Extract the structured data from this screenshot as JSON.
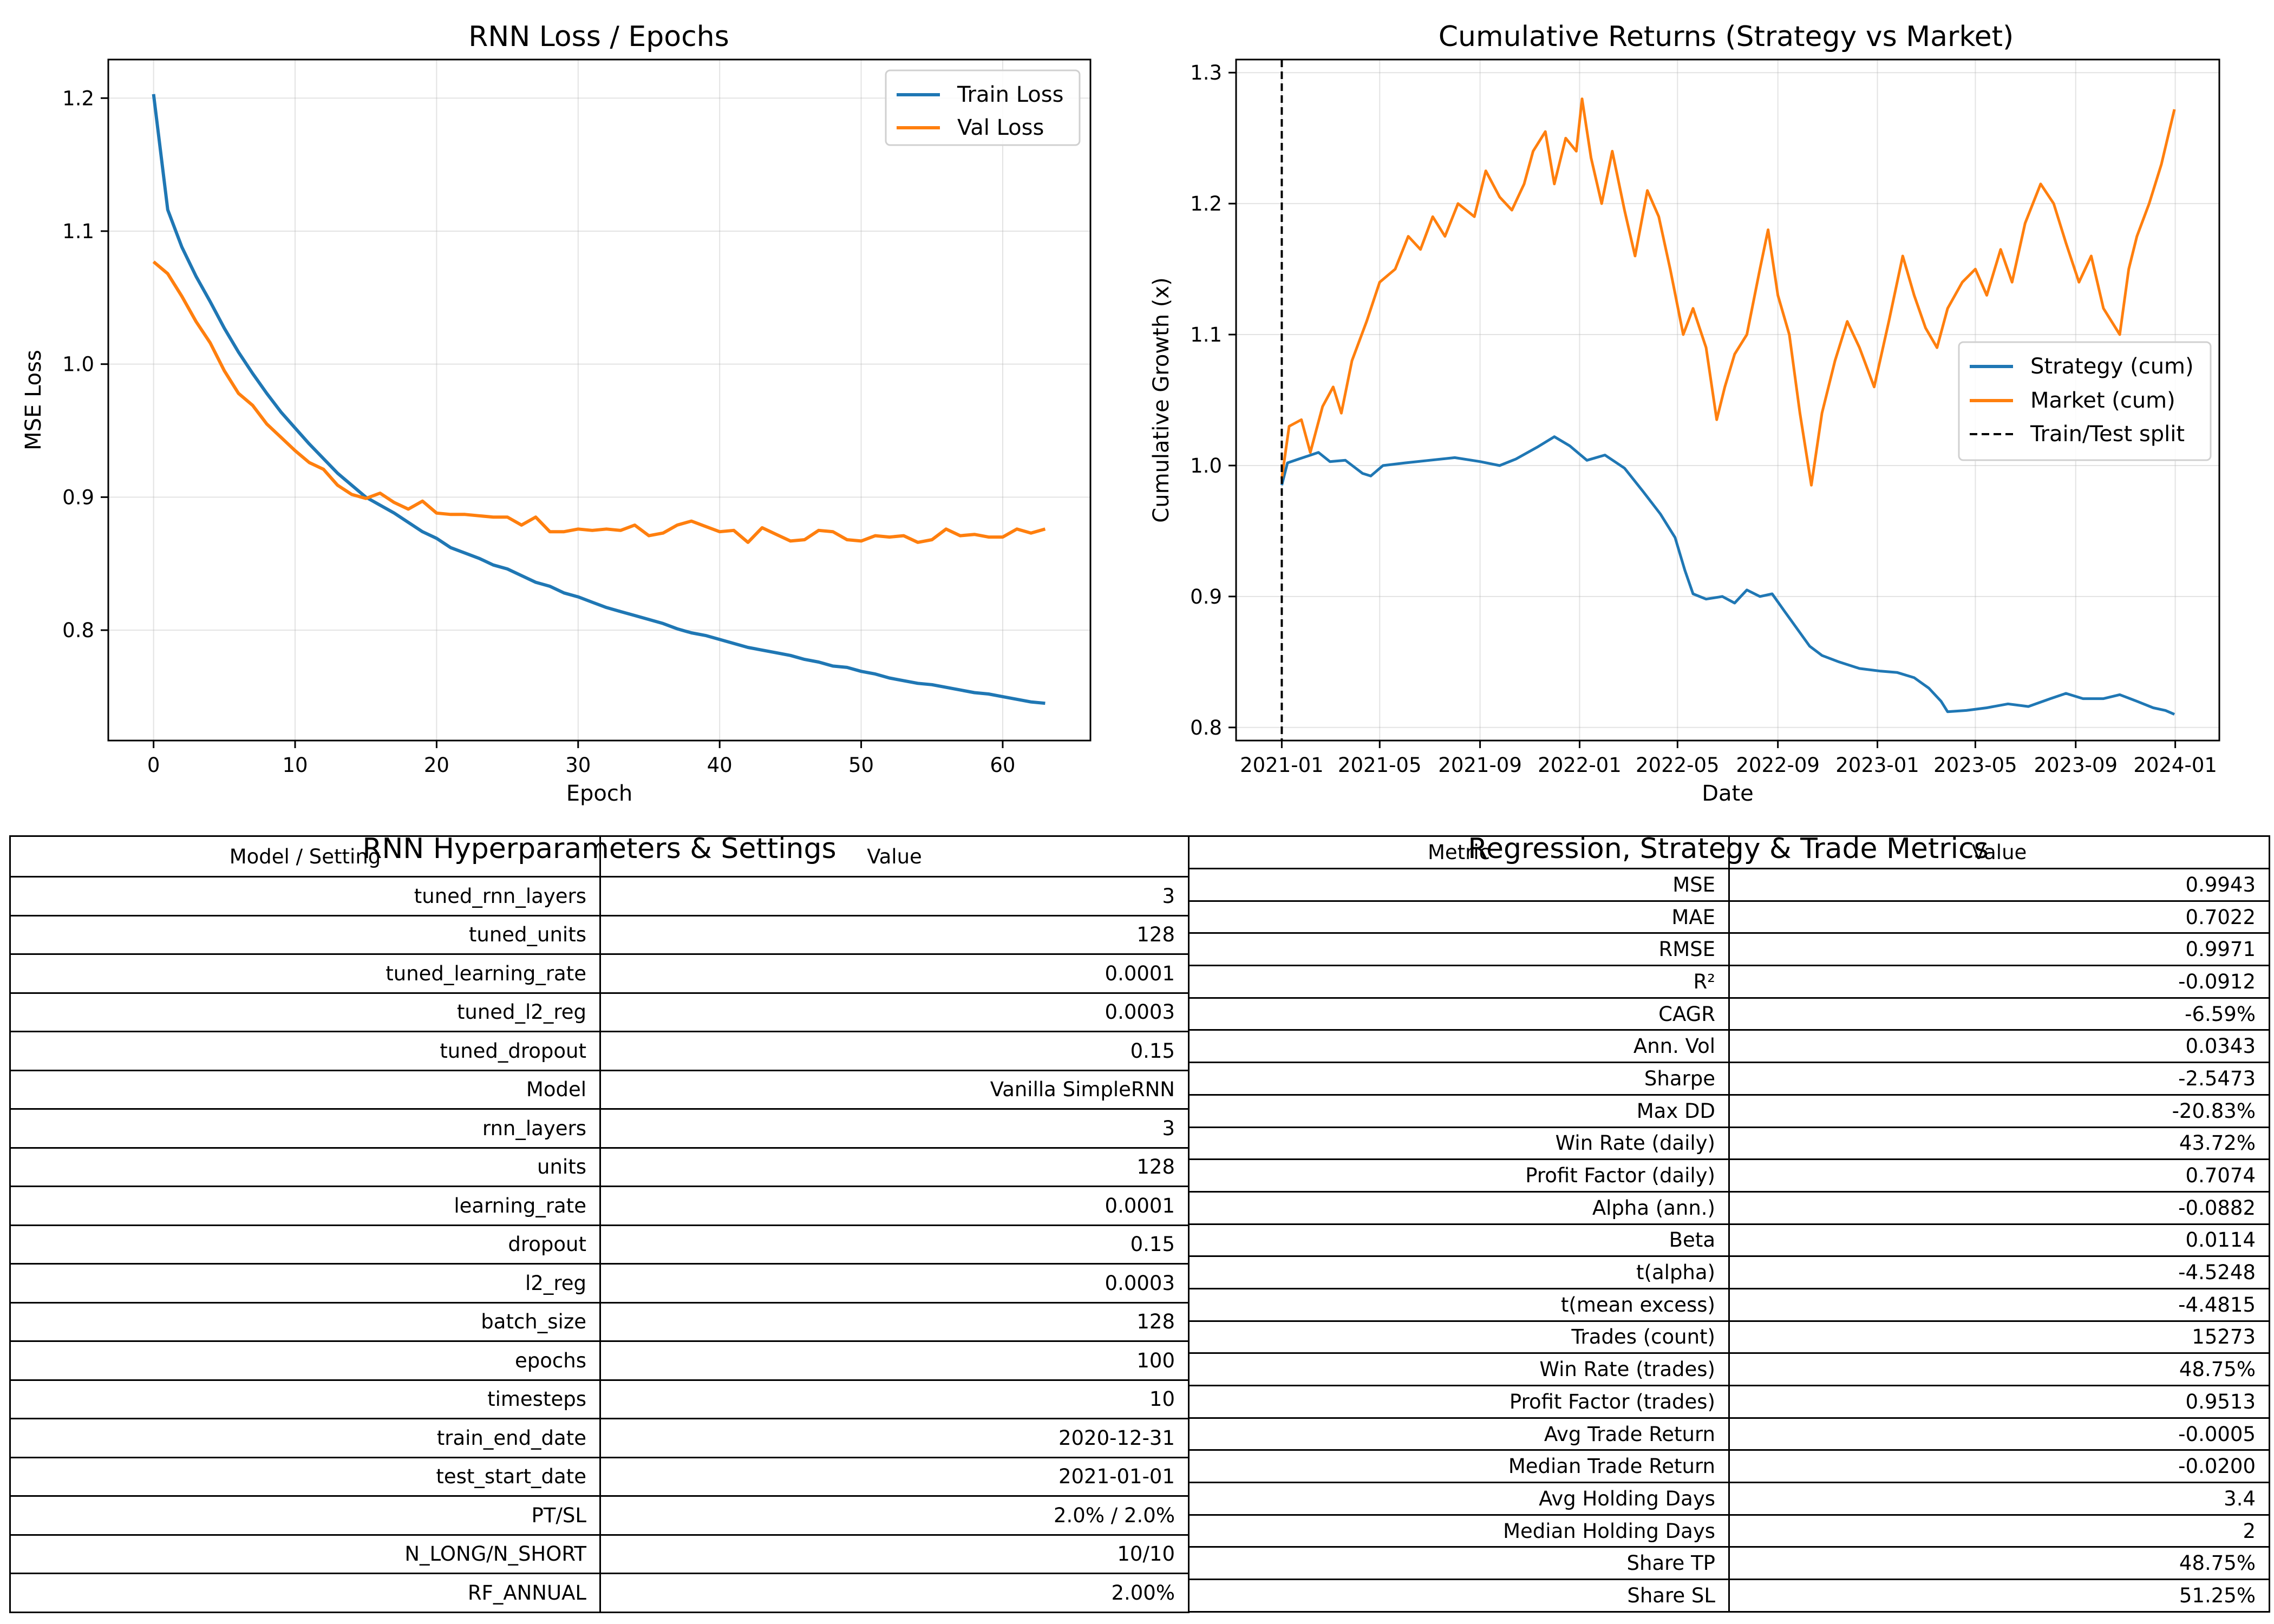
{
  "charts": {
    "loss": {
      "title": "RNN Loss / Epochs",
      "xlabel": "Epoch",
      "ylabel": "MSE Loss"
    },
    "returns": {
      "title": "Cumulative Returns (Strategy vs Market)",
      "xlabel": "Date",
      "ylabel": "Cumulative Growth (x)"
    }
  },
  "tables": {
    "hyper": {
      "title": "RNN Hyperparameters & Settings",
      "header": [
        "Model / Setting",
        "Value"
      ],
      "rows": [
        [
          "tuned_rnn_layers",
          "3"
        ],
        [
          "tuned_units",
          "128"
        ],
        [
          "tuned_learning_rate",
          "0.0001"
        ],
        [
          "tuned_l2_reg",
          "0.0003"
        ],
        [
          "tuned_dropout",
          "0.15"
        ],
        [
          "Model",
          "Vanilla SimpleRNN"
        ],
        [
          "rnn_layers",
          "3"
        ],
        [
          "units",
          "128"
        ],
        [
          "learning_rate",
          "0.0001"
        ],
        [
          "dropout",
          "0.15"
        ],
        [
          "l2_reg",
          "0.0003"
        ],
        [
          "batch_size",
          "128"
        ],
        [
          "epochs",
          "100"
        ],
        [
          "timesteps",
          "10"
        ],
        [
          "train_end_date",
          "2020-12-31"
        ],
        [
          "test_start_date",
          "2021-01-01"
        ],
        [
          "PT/SL",
          "2.0% / 2.0%"
        ],
        [
          "N_LONG/N_SHORT",
          "10/10"
        ],
        [
          "RF_ANNUAL",
          "2.00%"
        ]
      ]
    },
    "metrics": {
      "title": "Regression, Strategy & Trade Metrics",
      "header": [
        "Metric",
        "Value"
      ],
      "rows": [
        [
          "MSE",
          "0.9943"
        ],
        [
          "MAE",
          "0.7022"
        ],
        [
          "RMSE",
          "0.9971"
        ],
        [
          "R²",
          "-0.0912"
        ],
        [
          "CAGR",
          "-6.59%"
        ],
        [
          "Ann. Vol",
          "0.0343"
        ],
        [
          "Sharpe",
          "-2.5473"
        ],
        [
          "Max DD",
          "-20.83%"
        ],
        [
          "Win Rate (daily)",
          "43.72%"
        ],
        [
          "Profit Factor (daily)",
          "0.7074"
        ],
        [
          "Alpha (ann.)",
          "-0.0882"
        ],
        [
          "Beta",
          "0.0114"
        ],
        [
          "t(alpha)",
          "-4.5248"
        ],
        [
          "t(mean excess)",
          "-4.4815"
        ],
        [
          "Trades (count)",
          "15273"
        ],
        [
          "Win Rate (trades)",
          "48.75%"
        ],
        [
          "Profit Factor (trades)",
          "0.9513"
        ],
        [
          "Avg Trade Return",
          "-0.0005"
        ],
        [
          "Median Trade Return",
          "-0.0200"
        ],
        [
          "Avg Holding Days",
          "3.4"
        ],
        [
          "Median Holding Days",
          "2"
        ],
        [
          "Share TP",
          "48.75%"
        ],
        [
          "Share SL",
          "51.25%"
        ]
      ]
    }
  },
  "chart_data": [
    {
      "type": "line",
      "title": "RNN Loss / Epochs",
      "xlabel": "Epoch",
      "ylabel": "MSE Loss",
      "xlim": [
        -3.2,
        66.2
      ],
      "ylim": [
        0.717,
        1.229
      ],
      "xticks": [
        0,
        10,
        20,
        30,
        40,
        50,
        60
      ],
      "yticks": [
        0.8,
        0.9,
        1.0,
        1.1,
        1.2
      ],
      "ytick_labels": [
        "0.8",
        "0.9",
        "1.0",
        "1.1",
        "1.2"
      ],
      "grid": true,
      "legend": "top-right",
      "series": [
        {
          "name": "Train Loss",
          "color": "#1f77b4",
          "values": [
            1.203,
            1.116,
            1.088,
            1.066,
            1.047,
            1.027,
            1.009,
            0.993,
            0.978,
            0.964,
            0.952,
            0.94,
            0.929,
            0.918,
            0.909,
            0.9,
            0.894,
            0.888,
            0.881,
            0.874,
            0.869,
            0.862,
            0.858,
            0.854,
            0.849,
            0.846,
            0.841,
            0.836,
            0.833,
            0.828,
            0.825,
            0.821,
            0.817,
            0.814,
            0.811,
            0.808,
            0.805,
            0.801,
            0.798,
            0.796,
            0.793,
            0.79,
            0.787,
            0.785,
            0.783,
            0.781,
            0.778,
            0.776,
            0.773,
            0.772,
            0.769,
            0.767,
            0.764,
            0.762,
            0.76,
            0.759,
            0.757,
            0.755,
            0.753,
            0.752,
            0.75,
            0.748,
            0.746,
            0.745
          ]
        },
        {
          "name": "Val Loss",
          "color": "#ff7f0e",
          "values": [
            1.077,
            1.068,
            1.051,
            1.032,
            1.016,
            0.995,
            0.978,
            0.969,
            0.955,
            0.945,
            0.935,
            0.926,
            0.921,
            0.909,
            0.902,
            0.899,
            0.903,
            0.896,
            0.891,
            0.897,
            0.888,
            0.887,
            0.887,
            0.886,
            0.885,
            0.885,
            0.879,
            0.885,
            0.874,
            0.874,
            0.876,
            0.875,
            0.876,
            0.875,
            0.879,
            0.871,
            0.873,
            0.879,
            0.882,
            0.878,
            0.874,
            0.875,
            0.866,
            0.877,
            0.872,
            0.867,
            0.868,
            0.875,
            0.874,
            0.868,
            0.867,
            0.871,
            0.87,
            0.871,
            0.866,
            0.868,
            0.876,
            0.871,
            0.872,
            0.87,
            0.87,
            0.876,
            0.873,
            0.876
          ]
        }
      ]
    },
    {
      "type": "line",
      "title": "Cumulative Returns (Strategy vs Market)",
      "xlabel": "Date",
      "ylabel": "Cumulative Growth (x)",
      "x_type": "date",
      "xlim": [
        "2020-11-06",
        "2024-02-24"
      ],
      "ylim": [
        0.79,
        1.31
      ],
      "xticks": [
        "2021-01",
        "2021-05",
        "2021-09",
        "2022-01",
        "2022-05",
        "2022-09",
        "2023-01",
        "2023-05",
        "2023-09",
        "2024-01"
      ],
      "yticks": [
        0.8,
        0.9,
        1.0,
        1.1,
        1.2,
        1.3
      ],
      "ytick_labels": [
        "0.8",
        "0.9",
        "1.0",
        "1.1",
        "1.2",
        "1.3"
      ],
      "grid": true,
      "legend": "center-right",
      "split": {
        "name": "Train/Test split",
        "date": "2021-01-01",
        "color": "#000000"
      },
      "series": [
        {
          "name": "Strategy (cum)",
          "color": "#1f77b4",
          "points": [
            [
              "2021-01-01",
              0.985
            ],
            [
              "2021-01-08",
              1.002
            ],
            [
              "2021-01-22",
              1.005
            ],
            [
              "2021-02-15",
              1.01
            ],
            [
              "2021-03-01",
              1.003
            ],
            [
              "2021-03-20",
              1.004
            ],
            [
              "2021-04-10",
              0.994
            ],
            [
              "2021-04-20",
              0.992
            ],
            [
              "2021-05-05",
              1.0
            ],
            [
              "2021-06-01",
              1.002
            ],
            [
              "2021-07-01",
              1.004
            ],
            [
              "2021-08-01",
              1.006
            ],
            [
              "2021-09-01",
              1.003
            ],
            [
              "2021-09-25",
              1.0
            ],
            [
              "2021-10-15",
              1.005
            ],
            [
              "2021-11-10",
              1.014
            ],
            [
              "2021-12-01",
              1.022
            ],
            [
              "2021-12-20",
              1.015
            ],
            [
              "2022-01-10",
              1.004
            ],
            [
              "2022-02-01",
              1.008
            ],
            [
              "2022-02-25",
              0.998
            ],
            [
              "2022-03-20",
              0.98
            ],
            [
              "2022-04-10",
              0.963
            ],
            [
              "2022-04-28",
              0.945
            ],
            [
              "2022-05-10",
              0.92
            ],
            [
              "2022-05-20",
              0.902
            ],
            [
              "2022-06-05",
              0.898
            ],
            [
              "2022-06-25",
              0.9
            ],
            [
              "2022-07-10",
              0.895
            ],
            [
              "2022-07-25",
              0.905
            ],
            [
              "2022-08-10",
              0.9
            ],
            [
              "2022-08-25",
              0.902
            ],
            [
              "2022-09-10",
              0.888
            ],
            [
              "2022-09-25",
              0.875
            ],
            [
              "2022-10-10",
              0.862
            ],
            [
              "2022-10-25",
              0.855
            ],
            [
              "2022-11-15",
              0.85
            ],
            [
              "2022-12-10",
              0.845
            ],
            [
              "2023-01-05",
              0.843
            ],
            [
              "2023-01-25",
              0.842
            ],
            [
              "2023-02-15",
              0.838
            ],
            [
              "2023-03-05",
              0.83
            ],
            [
              "2023-03-20",
              0.82
            ],
            [
              "2023-03-28",
              0.812
            ],
            [
              "2023-04-20",
              0.813
            ],
            [
              "2023-05-15",
              0.815
            ],
            [
              "2023-06-10",
              0.818
            ],
            [
              "2023-07-05",
              0.816
            ],
            [
              "2023-08-01",
              0.822
            ],
            [
              "2023-08-20",
              0.826
            ],
            [
              "2023-09-10",
              0.822
            ],
            [
              "2023-10-05",
              0.822
            ],
            [
              "2023-10-25",
              0.825
            ],
            [
              "2023-11-15",
              0.82
            ],
            [
              "2023-12-05",
              0.815
            ],
            [
              "2023-12-20",
              0.813
            ],
            [
              "2023-12-31",
              0.81
            ]
          ]
        },
        {
          "name": "Market (cum)",
          "color": "#ff7f0e",
          "points": [
            [
              "2021-01-01",
              0.99
            ],
            [
              "2021-01-10",
              1.03
            ],
            [
              "2021-01-25",
              1.035
            ],
            [
              "2021-02-05",
              1.01
            ],
            [
              "2021-02-20",
              1.045
            ],
            [
              "2021-03-05",
              1.06
            ],
            [
              "2021-03-15",
              1.04
            ],
            [
              "2021-03-28",
              1.08
            ],
            [
              "2021-04-15",
              1.11
            ],
            [
              "2021-05-01",
              1.14
            ],
            [
              "2021-05-20",
              1.15
            ],
            [
              "2021-06-05",
              1.175
            ],
            [
              "2021-06-20",
              1.165
            ],
            [
              "2021-07-05",
              1.19
            ],
            [
              "2021-07-20",
              1.175
            ],
            [
              "2021-08-05",
              1.2
            ],
            [
              "2021-08-25",
              1.19
            ],
            [
              "2021-09-08",
              1.225
            ],
            [
              "2021-09-25",
              1.205
            ],
            [
              "2021-10-10",
              1.195
            ],
            [
              "2021-10-25",
              1.215
            ],
            [
              "2021-11-05",
              1.24
            ],
            [
              "2021-11-20",
              1.255
            ],
            [
              "2021-12-01",
              1.215
            ],
            [
              "2021-12-15",
              1.25
            ],
            [
              "2021-12-28",
              1.24
            ],
            [
              "2022-01-04",
              1.28
            ],
            [
              "2022-01-15",
              1.235
            ],
            [
              "2022-01-28",
              1.2
            ],
            [
              "2022-02-10",
              1.24
            ],
            [
              "2022-02-25",
              1.195
            ],
            [
              "2022-03-10",
              1.16
            ],
            [
              "2022-03-25",
              1.21
            ],
            [
              "2022-04-08",
              1.19
            ],
            [
              "2022-04-22",
              1.15
            ],
            [
              "2022-05-08",
              1.1
            ],
            [
              "2022-05-20",
              1.12
            ],
            [
              "2022-06-05",
              1.09
            ],
            [
              "2022-06-18",
              1.035
            ],
            [
              "2022-06-28",
              1.06
            ],
            [
              "2022-07-10",
              1.085
            ],
            [
              "2022-07-25",
              1.1
            ],
            [
              "2022-08-10",
              1.15
            ],
            [
              "2022-08-20",
              1.18
            ],
            [
              "2022-09-01",
              1.13
            ],
            [
              "2022-09-15",
              1.1
            ],
            [
              "2022-09-28",
              1.04
            ],
            [
              "2022-10-12",
              0.985
            ],
            [
              "2022-10-25",
              1.04
            ],
            [
              "2022-11-10",
              1.08
            ],
            [
              "2022-11-25",
              1.11
            ],
            [
              "2022-12-10",
              1.09
            ],
            [
              "2022-12-28",
              1.06
            ],
            [
              "2023-01-15",
              1.11
            ],
            [
              "2023-02-01",
              1.16
            ],
            [
              "2023-02-15",
              1.13
            ],
            [
              "2023-03-01",
              1.105
            ],
            [
              "2023-03-15",
              1.09
            ],
            [
              "2023-03-28",
              1.12
            ],
            [
              "2023-04-15",
              1.14
            ],
            [
              "2023-05-01",
              1.15
            ],
            [
              "2023-05-15",
              1.13
            ],
            [
              "2023-06-01",
              1.165
            ],
            [
              "2023-06-15",
              1.14
            ],
            [
              "2023-07-01",
              1.185
            ],
            [
              "2023-07-20",
              1.215
            ],
            [
              "2023-08-05",
              1.2
            ],
            [
              "2023-08-20",
              1.17
            ],
            [
              "2023-09-05",
              1.14
            ],
            [
              "2023-09-20",
              1.16
            ],
            [
              "2023-10-05",
              1.12
            ],
            [
              "2023-10-25",
              1.1
            ],
            [
              "2023-11-05",
              1.15
            ],
            [
              "2023-11-15",
              1.175
            ],
            [
              "2023-11-30",
              1.2
            ],
            [
              "2023-12-15",
              1.23
            ],
            [
              "2023-12-31",
              1.272
            ]
          ]
        }
      ]
    }
  ]
}
